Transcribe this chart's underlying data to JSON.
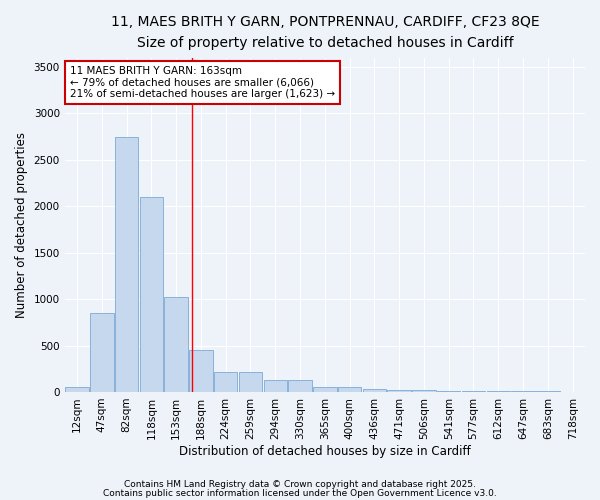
{
  "title1": "11, MAES BRITH Y GARN, PONTPRENNAU, CARDIFF, CF23 8QE",
  "title2": "Size of property relative to detached houses in Cardiff",
  "xlabel": "Distribution of detached houses by size in Cardiff",
  "ylabel": "Number of detached properties",
  "bar_labels": [
    "12sqm",
    "47sqm",
    "82sqm",
    "118sqm",
    "153sqm",
    "188sqm",
    "224sqm",
    "259sqm",
    "294sqm",
    "330sqm",
    "365sqm",
    "400sqm",
    "436sqm",
    "471sqm",
    "506sqm",
    "541sqm",
    "577sqm",
    "612sqm",
    "647sqm",
    "683sqm",
    "718sqm"
  ],
  "bar_heights": [
    50,
    850,
    2750,
    2100,
    1020,
    450,
    210,
    210,
    130,
    130,
    55,
    55,
    30,
    25,
    20,
    15,
    10,
    5,
    5,
    5,
    3
  ],
  "bar_color": "#c5d8ed",
  "bar_edgecolor": "#6a9fd0",
  "red_line_x": 4.65,
  "annotation_line1": "11 MAES BRITH Y GARN: 163sqm",
  "annotation_line2": "← 79% of detached houses are smaller (6,066)",
  "annotation_line3": "21% of semi-detached houses are larger (1,623) →",
  "annotation_box_color": "#ffffff",
  "annotation_box_edgecolor": "#cc0000",
  "ylim": [
    0,
    3600
  ],
  "yticks": [
    0,
    500,
    1000,
    1500,
    2000,
    2500,
    3000,
    3500
  ],
  "background_color": "#eef2f9",
  "grid_color": "#ffffff",
  "footer1": "Contains HM Land Registry data © Crown copyright and database right 2025.",
  "footer2": "Contains public sector information licensed under the Open Government Licence v3.0.",
  "title1_fontsize": 10,
  "title2_fontsize": 9.5,
  "axis_label_fontsize": 8.5,
  "tick_fontsize": 7.5,
  "annotation_fontsize": 7.5,
  "footer_fontsize": 6.5
}
